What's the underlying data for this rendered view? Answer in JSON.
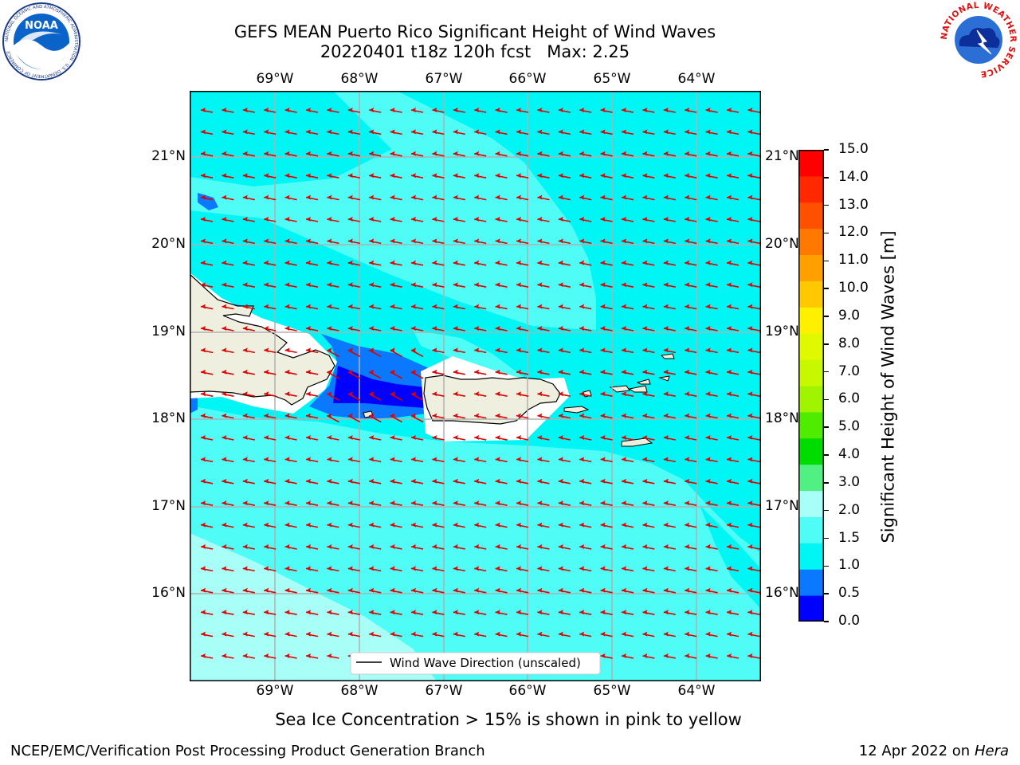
{
  "header": {
    "title_line1": "GEFS MEAN Puerto Rico Significant Height of Wind Waves",
    "title_line2": "20220401 t18z 120h fcst   Max: 2.25"
  },
  "logos": {
    "noaa_text": "NOAA",
    "noaa_ring": "NATIONAL OCEANIC AND ATMOSPHERIC ADMINISTRATION · U.S. DEPARTMENT OF COMMERCE",
    "nws_ring": "NATIONAL WEATHER SERVICE"
  },
  "map": {
    "lon_ticks": [
      "69°W",
      "68°W",
      "67°W",
      "66°W",
      "65°W",
      "64°W"
    ],
    "lat_ticks": [
      "21°N",
      "20°N",
      "19°N",
      "18°N",
      "17°N",
      "16°N"
    ],
    "legend_label": "Wind Wave Direction (unscaled)",
    "wind_direction": "from the east (arrows pointing west)",
    "colors": {
      "land": "#efefdf",
      "coast": "#000000",
      "grid": "#b0b0b0",
      "arrow": "#e00000"
    }
  },
  "colorbar": {
    "label": "Significant Height of Wind Waves [m]",
    "ticks": [
      "0.0",
      "0.5",
      "1.0",
      "1.5",
      "2.0",
      "3.0",
      "4.0",
      "5.0",
      "6.0",
      "7.0",
      "8.0",
      "9.0",
      "10.0",
      "11.0",
      "12.0",
      "13.0",
      "14.0",
      "15.0"
    ],
    "colors": [
      "#0000ff",
      "#0a78ff",
      "#00f5f5",
      "#50fcf6",
      "#a8fff8",
      "#50f082",
      "#00dc00",
      "#50ec00",
      "#a0f400",
      "#c8f800",
      "#e0f800",
      "#fff000",
      "#ffc800",
      "#ffa000",
      "#ff7800",
      "#ff5000",
      "#ff2800",
      "#ff0000"
    ]
  },
  "subtitle": "Sea Ice Concentration > 15% is shown in pink to yellow",
  "footer": {
    "left": "NCEP/EMC/Verification Post Processing Product Generation Branch",
    "right_date": "12 Apr 2022 on ",
    "right_host": "Hera"
  }
}
